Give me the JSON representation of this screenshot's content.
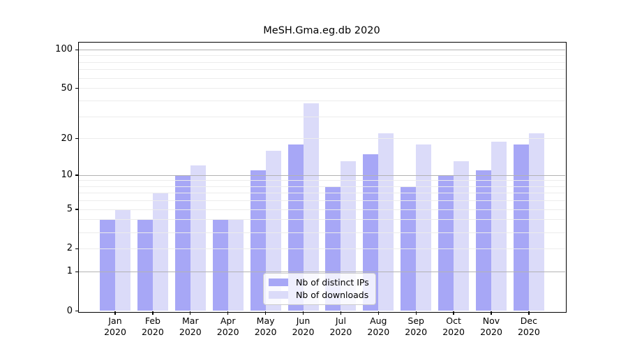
{
  "title": "MeSH.Gma.eg.db 2020",
  "chart_data": {
    "type": "bar",
    "title": "MeSH.Gma.eg.db 2020",
    "xlabel": "",
    "ylabel": "",
    "scale": "log1p",
    "grid": "on",
    "legend_position": "lower center inside",
    "categories": [
      "Jan",
      "Feb",
      "Mar",
      "Apr",
      "May",
      "Jun",
      "Jul",
      "Aug",
      "Sep",
      "Oct",
      "Nov",
      "Dec"
    ],
    "year_label": "2020",
    "series": [
      {
        "name": "Nb of distinct IPs",
        "color": "#a7a7f6",
        "values": [
          4,
          4,
          10,
          4,
          11,
          18,
          8,
          15,
          8,
          10,
          11,
          18
        ]
      },
      {
        "name": "Nb of downloads",
        "color": "#dbdbf9",
        "values": [
          5,
          7,
          12,
          4,
          16,
          38,
          13,
          22,
          18,
          13,
          19,
          22
        ]
      }
    ],
    "yticks": [
      0,
      1,
      2,
      5,
      10,
      20,
      50,
      100
    ],
    "major_gridlines": [
      1,
      10,
      100
    ],
    "minor_gridlines": [
      2,
      3,
      4,
      5,
      6,
      7,
      8,
      9,
      20,
      30,
      40,
      50,
      60,
      70,
      80,
      90
    ],
    "ylim": [
      0,
      113
    ]
  },
  "colors": {
    "bar_ips": "#a7a7f6",
    "bar_downloads": "#dbdbf9",
    "major_grid": "#b3b3b3",
    "minor_grid": "#ececec",
    "spine": "#000000",
    "text": "#000000",
    "legend_border": "#cccccc"
  }
}
